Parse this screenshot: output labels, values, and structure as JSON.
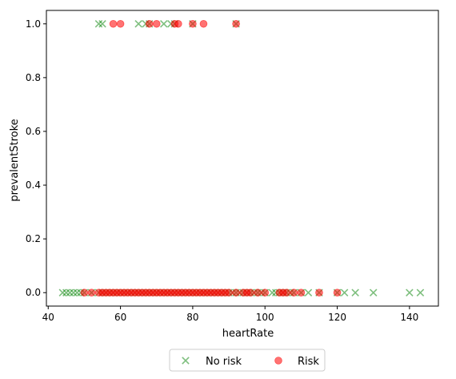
{
  "chart_data": {
    "type": "scatter",
    "title": "",
    "xlabel": "heartRate",
    "ylabel": "prevalentStroke",
    "xlim": [
      39.5,
      148
    ],
    "ylim": [
      -0.05,
      1.05
    ],
    "xticks": [
      40,
      60,
      80,
      100,
      120,
      140
    ],
    "yticks": [
      0.0,
      0.2,
      0.4,
      0.6,
      0.8,
      1.0
    ],
    "xtick_labels": [
      "40",
      "60",
      "80",
      "100",
      "120",
      "140"
    ],
    "ytick_labels": [
      "0.0",
      "0.2",
      "0.4",
      "0.6",
      "0.8",
      "1.0"
    ],
    "legend_placement": "bottom-center",
    "grid": false,
    "series": [
      {
        "name": "No risk",
        "marker": "x",
        "color": "#008000",
        "alpha": 0.5,
        "points": [
          [
            54,
            1
          ],
          [
            55,
            1
          ],
          [
            65,
            1
          ],
          [
            67,
            1
          ],
          [
            68,
            1
          ],
          [
            72,
            1
          ],
          [
            74,
            1
          ],
          [
            75,
            1
          ],
          [
            80,
            1
          ],
          [
            92,
            1
          ],
          [
            44,
            0
          ],
          [
            45,
            0
          ],
          [
            46,
            0
          ],
          [
            47,
            0
          ],
          [
            48,
            0
          ],
          [
            49,
            0
          ],
          [
            50,
            0
          ],
          [
            52,
            0
          ],
          [
            54,
            0
          ],
          [
            55,
            0
          ],
          [
            56,
            0
          ],
          [
            57,
            0
          ],
          [
            58,
            0
          ],
          [
            59,
            0
          ],
          [
            60,
            0
          ],
          [
            61,
            0
          ],
          [
            62,
            0
          ],
          [
            63,
            0
          ],
          [
            64,
            0
          ],
          [
            65,
            0
          ],
          [
            66,
            0
          ],
          [
            67,
            0
          ],
          [
            68,
            0
          ],
          [
            69,
            0
          ],
          [
            70,
            0
          ],
          [
            71,
            0
          ],
          [
            72,
            0
          ],
          [
            73,
            0
          ],
          [
            74,
            0
          ],
          [
            75,
            0
          ],
          [
            76,
            0
          ],
          [
            77,
            0
          ],
          [
            78,
            0
          ],
          [
            79,
            0
          ],
          [
            80,
            0
          ],
          [
            81,
            0
          ],
          [
            82,
            0
          ],
          [
            83,
            0
          ],
          [
            84,
            0
          ],
          [
            85,
            0
          ],
          [
            86,
            0
          ],
          [
            87,
            0
          ],
          [
            88,
            0
          ],
          [
            89,
            0
          ],
          [
            90,
            0
          ],
          [
            91,
            0
          ],
          [
            92,
            0
          ],
          [
            93,
            0
          ],
          [
            94,
            0
          ],
          [
            95,
            0
          ],
          [
            96,
            0
          ],
          [
            97,
            0
          ],
          [
            98,
            0
          ],
          [
            99,
            0
          ],
          [
            100,
            0
          ],
          [
            102,
            0
          ],
          [
            103,
            0
          ],
          [
            104,
            0
          ],
          [
            105,
            0
          ],
          [
            106,
            0
          ],
          [
            107,
            0
          ],
          [
            108,
            0
          ],
          [
            110,
            0
          ],
          [
            112,
            0
          ],
          [
            115,
            0
          ],
          [
            120,
            0
          ],
          [
            122,
            0
          ],
          [
            125,
            0
          ],
          [
            130,
            0
          ],
          [
            140,
            0
          ],
          [
            143,
            0
          ]
        ]
      },
      {
        "name": "Risk",
        "marker": "o",
        "color": "#ff0000",
        "alpha": 0.55,
        "points": [
          [
            58,
            1
          ],
          [
            60,
            1
          ],
          [
            68,
            1
          ],
          [
            70,
            1
          ],
          [
            75,
            1
          ],
          [
            76,
            1
          ],
          [
            80,
            1
          ],
          [
            83,
            1
          ],
          [
            92,
            1
          ],
          [
            50,
            0
          ],
          [
            52,
            0
          ],
          [
            54,
            0
          ],
          [
            55,
            0
          ],
          [
            56,
            0
          ],
          [
            57,
            0
          ],
          [
            58,
            0
          ],
          [
            59,
            0
          ],
          [
            60,
            0
          ],
          [
            61,
            0
          ],
          [
            62,
            0
          ],
          [
            63,
            0
          ],
          [
            64,
            0
          ],
          [
            65,
            0
          ],
          [
            66,
            0
          ],
          [
            67,
            0
          ],
          [
            68,
            0
          ],
          [
            69,
            0
          ],
          [
            70,
            0
          ],
          [
            71,
            0
          ],
          [
            72,
            0
          ],
          [
            73,
            0
          ],
          [
            74,
            0
          ],
          [
            75,
            0
          ],
          [
            76,
            0
          ],
          [
            77,
            0
          ],
          [
            78,
            0
          ],
          [
            79,
            0
          ],
          [
            80,
            0
          ],
          [
            81,
            0
          ],
          [
            82,
            0
          ],
          [
            83,
            0
          ],
          [
            84,
            0
          ],
          [
            85,
            0
          ],
          [
            86,
            0
          ],
          [
            87,
            0
          ],
          [
            88,
            0
          ],
          [
            89,
            0
          ],
          [
            90,
            0
          ],
          [
            92,
            0
          ],
          [
            94,
            0
          ],
          [
            95,
            0
          ],
          [
            96,
            0
          ],
          [
            98,
            0
          ],
          [
            100,
            0
          ],
          [
            104,
            0
          ],
          [
            105,
            0
          ],
          [
            106,
            0
          ],
          [
            108,
            0
          ],
          [
            110,
            0
          ],
          [
            115,
            0
          ],
          [
            120,
            0
          ]
        ]
      }
    ]
  }
}
